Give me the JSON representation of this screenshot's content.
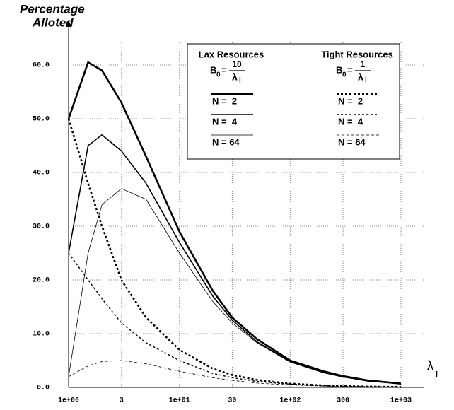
{
  "chart_data": {
    "type": "line",
    "ylabel": [
      "Percentage",
      "Alloted"
    ],
    "xlabel": "λ",
    "xlabel_sub": "j",
    "log_x": true,
    "grid": true,
    "xlim": [
      1,
      1000
    ],
    "ylim": [
      0,
      60
    ],
    "xticks": [
      {
        "value": 1,
        "label": "1e+00"
      },
      3,
      {
        "value": 10,
        "label": "1e+01"
      },
      30,
      {
        "value": 100,
        "label": "1e+02"
      },
      300,
      {
        "value": 1000,
        "label": "1e+03"
      }
    ],
    "yticks": [
      {
        "value": 0,
        "label": "0.0"
      },
      {
        "value": 10,
        "label": "10.0"
      },
      {
        "value": 20,
        "label": "20.0"
      },
      {
        "value": 30,
        "label": "30.0"
      },
      {
        "value": 40,
        "label": "40.0"
      },
      {
        "value": 50,
        "label": "50.0"
      },
      {
        "value": 60,
        "label": "60.0"
      }
    ],
    "x": [
      1,
      1.5,
      2,
      3,
      5,
      10,
      20,
      30,
      50,
      100,
      200,
      300,
      500,
      1000
    ],
    "legend_groups": [
      {
        "title": "Lax Resources",
        "formula": {
          "lhs": "B",
          "lhs_sub": "0",
          "num": "10",
          "den": "λ",
          "den_sub": "i"
        }
      },
      {
        "title": "Tight Resources",
        "formula": {
          "lhs": "B",
          "lhs_sub": "0",
          "num": "1",
          "den": "λ",
          "den_sub": "i"
        }
      }
    ],
    "series": [
      {
        "name": "N =  2",
        "group": 0,
        "color": "#000000",
        "width": 2.6,
        "dash": "none",
        "values": [
          50,
          60.5,
          59,
          53,
          43,
          29,
          18,
          13,
          9,
          5,
          3,
          2.1,
          1.3,
          0.7
        ]
      },
      {
        "name": "N =  4",
        "group": 0,
        "color": "#000000",
        "width": 1.6,
        "dash": "none",
        "values": [
          25,
          45,
          47,
          44,
          38,
          27,
          17,
          12.5,
          8.5,
          4.8,
          2.8,
          2,
          1.2,
          0.7
        ]
      },
      {
        "name": "N = 64",
        "group": 0,
        "color": "#000000",
        "width": 0.8,
        "dash": "none",
        "values": [
          2,
          25,
          34,
          37,
          35,
          25,
          16,
          12,
          8.3,
          4.7,
          2.7,
          1.9,
          1.2,
          0.7
        ]
      },
      {
        "name": "N =  2",
        "group": 1,
        "color": "#000000",
        "width": 2.6,
        "dash": "3 3",
        "values": [
          50,
          38,
          30,
          20,
          13,
          7,
          3.5,
          2.3,
          1.4,
          0.7,
          0.35,
          0.25,
          0.15,
          0.08
        ]
      },
      {
        "name": "N =  4",
        "group": 1,
        "color": "#000000",
        "width": 1.4,
        "dash": "3 3",
        "values": [
          25,
          20,
          16.5,
          12,
          8.3,
          5,
          2.6,
          1.8,
          1.1,
          0.6,
          0.3,
          0.2,
          0.13,
          0.07
        ]
      },
      {
        "name": "N = 64",
        "group": 1,
        "color": "#000000",
        "width": 0.8,
        "dash": "4 3",
        "values": [
          2,
          4,
          4.8,
          5,
          4.4,
          3,
          1.8,
          1.3,
          0.8,
          0.45,
          0.25,
          0.17,
          0.1,
          0.05
        ]
      }
    ]
  }
}
